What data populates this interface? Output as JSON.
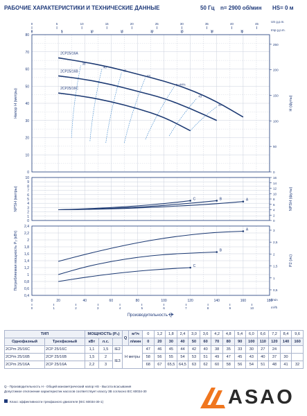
{
  "header": {
    "title": "РАБОЧИЕ ХАРАКТЕРИСТИКИ И ТЕХНИЧЕСКИЕ ДАННЫЕ",
    "frequency": "50 Гц",
    "speed": "n= 2900 об/мин",
    "hs": "HS= 0 м"
  },
  "chart_data": [
    {
      "type": "line",
      "panel": "head",
      "ylabel": "Напор H (метры)",
      "ylabel_right": "H (футы)",
      "xlim": [
        0,
        180
      ],
      "ylim": [
        0,
        80
      ],
      "yticks": [
        0,
        10,
        20,
        30,
        40,
        50,
        60,
        70,
        80
      ],
      "yticks_right": [
        0,
        50,
        100,
        150,
        200,
        250
      ],
      "top_axis_usgpm": [
        0,
        5,
        10,
        15,
        20,
        25,
        30,
        35,
        40,
        45
      ],
      "top_axis_usgpm_label": "US g.p.m.",
      "top_axis_impgpm": [
        0,
        5,
        10,
        15,
        20,
        25,
        30,
        35
      ],
      "top_axis_impgpm_label": "Imp g.p.m.",
      "series": [
        {
          "name": "2CP25/16A",
          "x": [
            20,
            40,
            60,
            80,
            100,
            120,
            140,
            160
          ],
          "y": [
            66.5,
            64,
            61,
            57,
            53,
            48,
            41,
            32
          ]
        },
        {
          "name": "2CP25/16B",
          "x": [
            20,
            40,
            60,
            80,
            100,
            120,
            140
          ],
          "y": [
            56,
            54,
            51,
            47,
            43,
            37,
            30
          ]
        },
        {
          "name": "2CP25/16C",
          "x": [
            20,
            40,
            60,
            80,
            100,
            120
          ],
          "y": [
            46,
            44,
            41,
            37,
            32,
            24
          ]
        }
      ],
      "efficiency_lines": [
        {
          "label": "30",
          "points": [
            [
              30,
              20
            ],
            [
              37,
              62
            ]
          ]
        },
        {
          "label": "40",
          "points": [
            [
              44,
              18
            ],
            [
              53,
              60
            ]
          ]
        },
        {
          "label": "42",
          "points": [
            [
              56,
              17
            ],
            [
              68,
              58
            ]
          ]
        },
        {
          "label": "43",
          "points": [
            [
              70,
              17
            ],
            [
              86,
              55
            ]
          ]
        },
        {
          "label": "η=44%",
          "points": [
            [
              86,
              19
            ],
            [
              108,
              50
            ]
          ]
        },
        {
          "label": "43",
          "points": [
            [
              104,
              21
            ],
            [
              125,
              43
            ]
          ]
        },
        {
          "label": "42",
          "points": [
            [
              120,
              24
            ],
            [
              140,
              38
            ]
          ]
        }
      ]
    },
    {
      "type": "line",
      "panel": "npsh",
      "ylabel": "NPSH (метры)",
      "ylabel_right": "NPSH (футы)",
      "xlim": [
        0,
        180
      ],
      "ylim": [
        0,
        10
      ],
      "yticks": [
        0,
        1,
        2,
        3,
        4,
        5,
        6,
        7,
        8,
        9,
        10
      ],
      "yticks_right": [
        0,
        2,
        4,
        6,
        8,
        10,
        12,
        14,
        16
      ],
      "series": [
        {
          "name": "A",
          "x": [
            20,
            40,
            60,
            80,
            100,
            120,
            140,
            160
          ],
          "y": [
            2.5,
            2.55,
            2.7,
            2.9,
            3.2,
            3.5,
            3.9,
            4.4
          ]
        },
        {
          "name": "B",
          "x": [
            20,
            40,
            60,
            80,
            100,
            120,
            140
          ],
          "y": [
            2.5,
            2.6,
            2.8,
            3.1,
            3.5,
            4.0,
            4.6
          ]
        },
        {
          "name": "C",
          "x": [
            20,
            40,
            60,
            80,
            100,
            120
          ],
          "y": [
            2.5,
            2.7,
            3.0,
            3.4,
            3.9,
            4.6
          ]
        }
      ]
    },
    {
      "type": "line",
      "panel": "power",
      "ylabel": "Потребляемая мощность P₂ (кВт)",
      "ylabel_right": "P2 (лс)",
      "xlabel": "Производительность Q",
      "xlim": [
        0,
        180
      ],
      "ylim": [
        0.4,
        2.4
      ],
      "yticks": [
        0.4,
        0.6,
        0.8,
        1.0,
        1.2,
        1.4,
        1.6,
        1.8,
        2.0,
        2.2,
        2.4
      ],
      "yticks_right": [
        0.5,
        1,
        1.5,
        2,
        2.5,
        3
      ],
      "xticks": [
        0,
        20,
        40,
        60,
        80,
        100,
        120,
        140,
        160,
        180
      ],
      "xticks_m3h": [
        0,
        1,
        2,
        3,
        4,
        5,
        6,
        7,
        8,
        9,
        10
      ],
      "x_unit": "l/min",
      "x_unit2": "m³/h",
      "series": [
        {
          "name": "A",
          "x": [
            20,
            40,
            60,
            80,
            100,
            120,
            140,
            160
          ],
          "y": [
            1.38,
            1.58,
            1.76,
            1.92,
            2.05,
            2.15,
            2.22,
            2.25
          ]
        },
        {
          "name": "B",
          "x": [
            20,
            40,
            60,
            80,
            100,
            120,
            140
          ],
          "y": [
            1.0,
            1.22,
            1.38,
            1.5,
            1.58,
            1.62,
            1.65
          ]
        },
        {
          "name": "C",
          "x": [
            20,
            40,
            60,
            80,
            100,
            120
          ],
          "y": [
            0.8,
            0.92,
            1.02,
            1.1,
            1.16,
            1.2
          ]
        }
      ]
    }
  ],
  "table": {
    "header_type": "ТИП",
    "header_power": "МОЩНОСТЬ (P₂)",
    "col_single": "Однофазный",
    "col_three": "Трехфазный",
    "col_kw": "кВт",
    "col_hp": "л.с.",
    "q_label": "Q",
    "h_label": "H метры",
    "ie_label": "IE3",
    "unit_m3h": "м³/ч",
    "unit_lmin": "л/мин",
    "q_m3h": [
      "0",
      "1,2",
      "1,8",
      "2,4",
      "3,0",
      "3,6",
      "4,2",
      "4,8",
      "5,4",
      "6,0",
      "6,6",
      "7,2",
      "8,4",
      "9,6"
    ],
    "q_lmin": [
      "0",
      "20",
      "30",
      "40",
      "50",
      "60",
      "70",
      "80",
      "90",
      "100",
      "110",
      "120",
      "140",
      "160"
    ],
    "rows": [
      {
        "single": "2CPm 25/16C",
        "three": "2CP 25/16C",
        "kw": "1,1",
        "hp": "1,5",
        "ie": "IE2",
        "h": [
          "47",
          "46",
          "45",
          "44",
          "42",
          "40",
          "38",
          "35",
          "33",
          "30",
          "27",
          "24",
          "",
          ""
        ]
      },
      {
        "single": "2CPm 25/16B",
        "three": "2CP 25/16B",
        "kw": "1,5",
        "hp": "2",
        "ie": "",
        "h": [
          "58",
          "56",
          "55",
          "54",
          "53",
          "51",
          "49",
          "47",
          "45",
          "43",
          "40",
          "37",
          "30",
          ""
        ]
      },
      {
        "single": "2CPm 25/16A",
        "three": "2CP 25/16A",
        "kw": "2,2",
        "hp": "3",
        "ie": "",
        "h": [
          "68",
          "67",
          "65,5",
          "64,5",
          "63",
          "62",
          "60",
          "58",
          "56",
          "54",
          "51",
          "48",
          "41",
          "32"
        ]
      }
    ]
  },
  "notes": {
    "line1": "Q - Производительность   H - Общий манометрический напор   HS - Высота всасывания",
    "line2": "Допустимое отклонение характеристик насосов соответствует классу 3B согласно IEC 60034-30",
    "line3": "Класс эффективности трехфазного двигателя (IEC 60034-30-1)"
  },
  "logo": {
    "text": "ASAO",
    "color_orange": "#f0761e",
    "color_dark": "#2a2a2a"
  },
  "colors": {
    "curve": "#1d3a73",
    "efficiency": "#4a8fd0",
    "grid": "#c9cfdc",
    "axis": "#1f3a7a"
  }
}
